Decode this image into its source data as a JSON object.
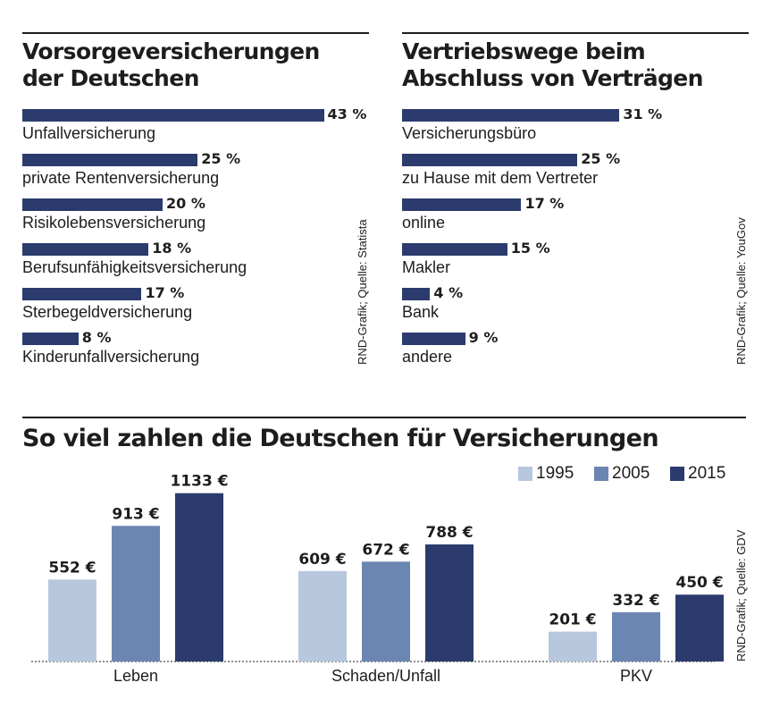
{
  "colors": {
    "bar": "#2b3b6e",
    "y1995": "#b7c7de",
    "y2005": "#6b86b2",
    "y2015": "#2b3b6e",
    "rule": "#1d1d1b"
  },
  "charts": {
    "vorsorge": {
      "title": "Vorsorgeversicherungen der Deutschen",
      "source": "RND-Grafik; Quelle: Statista"
    },
    "vertrieb": {
      "title": "Vertriebswege beim Abschluss von Verträgen",
      "source": "RND-Grafik; Quelle: YouGov"
    },
    "zahlen": {
      "title": "So viel zahlen die Deutschen für Versicherungen",
      "source": "RND-Grafik; Quelle: GDV"
    }
  },
  "chart_data": [
    {
      "type": "bar",
      "orientation": "horizontal",
      "title": "Vorsorgeversicherungen der Deutschen",
      "unit": "%",
      "categories": [
        "Unfallversicherung",
        "private Rentenversicherung",
        "Risikolebensversicherung",
        "Berufsunfähigkeitsversicherung",
        "Sterbegeldversicherung",
        "Kinderunfallversicherung"
      ],
      "values": [
        43,
        25,
        20,
        18,
        17,
        8
      ],
      "value_labels": [
        "43 %",
        "25 %",
        "20 %",
        "18 %",
        "17 %",
        "8 %"
      ]
    },
    {
      "type": "bar",
      "orientation": "horizontal",
      "title": "Vertriebswege beim Abschluss von Verträgen",
      "unit": "%",
      "categories": [
        "Versicherungsbüro",
        "zu Hause mit dem Vertreter",
        "online",
        "Makler",
        "Bank",
        "andere"
      ],
      "values": [
        31,
        25,
        17,
        15,
        4,
        9
      ],
      "value_labels": [
        "31 %",
        "25 %",
        "17 %",
        "15 %",
        "4 %",
        "9 %"
      ]
    },
    {
      "type": "bar",
      "orientation": "vertical",
      "title": "So viel zahlen die Deutschen für Versicherungen",
      "unit": "€",
      "categories": [
        "Leben",
        "Schaden/Unfall",
        "PKV"
      ],
      "series": [
        {
          "name": "1995",
          "values": [
            552,
            609,
            201
          ],
          "labels": [
            "552 €",
            "609 €",
            "201 €"
          ]
        },
        {
          "name": "2005",
          "values": [
            913,
            672,
            332
          ],
          "labels": [
            "913 €",
            "672 €",
            "332 €"
          ]
        },
        {
          "name": "2015",
          "values": [
            1133,
            788,
            450
          ],
          "labels": [
            "1133 €",
            "788 €",
            "450 €"
          ]
        }
      ],
      "legend": "top-right",
      "grid": false
    }
  ]
}
